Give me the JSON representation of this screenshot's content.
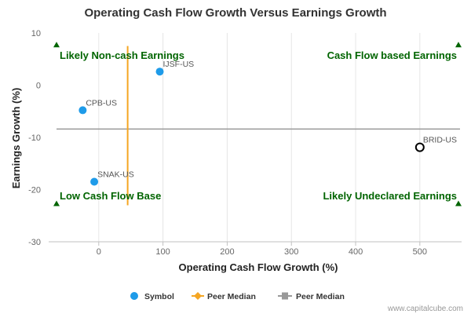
{
  "chart_data": {
    "type": "scatter",
    "title": "Operating Cash Flow Growth Versus Earnings Growth",
    "xlabel": "Operating Cash Flow Growth (%)",
    "ylabel": "Earnings Growth (%)",
    "xlim": [
      -78,
      565
    ],
    "ylim": [
      -30,
      10
    ],
    "x_ticks": [
      0,
      100,
      200,
      300,
      400,
      500
    ],
    "y_ticks": [
      10,
      0,
      -10,
      -20,
      -30
    ],
    "points": [
      {
        "symbol": "IJSF-US",
        "x": 95,
        "y": 2.6,
        "style": "filled",
        "label_side": "right"
      },
      {
        "symbol": "CPB-US",
        "x": -25,
        "y": -4.8,
        "style": "filled",
        "label_side": "right"
      },
      {
        "symbol": "SNAK-US",
        "x": -7,
        "y": -18.5,
        "style": "filled",
        "label_side": "right"
      },
      {
        "symbol": "BRID-US",
        "x": 500,
        "y": -11.9,
        "style": "open",
        "label_side": "right"
      }
    ],
    "peer_median_x": 45,
    "peer_median_y": -8.4,
    "quadrants": {
      "top_left": "Likely Non-cash Earnings",
      "top_right": "Cash Flow based Earnings",
      "bottom_left": "Low Cash Flow Base",
      "bottom_right": "Likely Undeclared Earnings"
    },
    "legend": [
      {
        "label": "Symbol",
        "marker": "circle",
        "color": "#1e9be9"
      },
      {
        "label": "Peer Median",
        "marker": "diamond-line",
        "color": "#f5a623"
      },
      {
        "label": "Peer Median",
        "marker": "square-line",
        "color": "#999999"
      }
    ],
    "colors": {
      "point": "#1e9be9",
      "vertical_median": "#f5a623",
      "horizontal_median": "#999999",
      "quadrant_text": "#006400"
    },
    "credit": "www.capitalcube.com"
  }
}
